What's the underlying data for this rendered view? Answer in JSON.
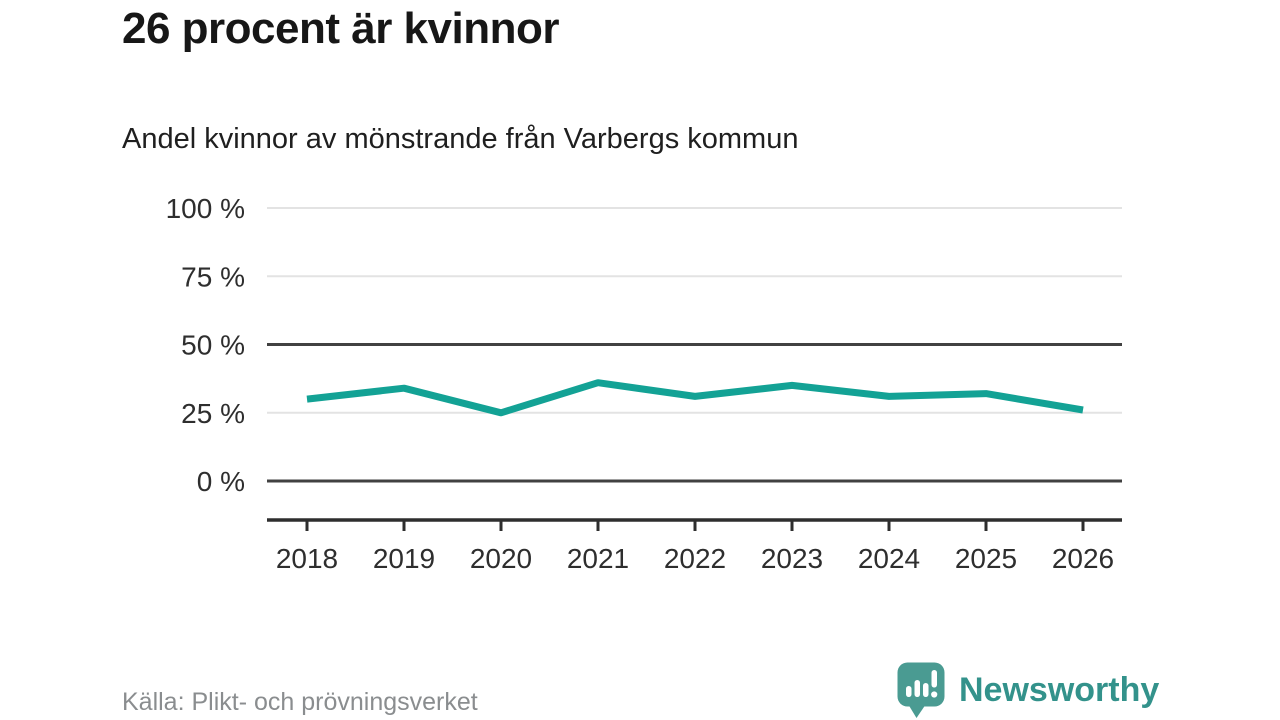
{
  "header": {
    "title": "26 procent är kvinnor",
    "subtitle": "Andel kvinnor av mönstrande från Varbergs kommun"
  },
  "footer": {
    "source_label": "Källa: Plikt- och prövningsverket",
    "logo_text": "Newsworthy"
  },
  "brand": {
    "icon_color": "#4a9b92",
    "text_color": "#33928b"
  },
  "chart_data": {
    "type": "line",
    "title": "26 procent är kvinnor",
    "subtitle": "Andel kvinnor av mönstrande från Varbergs kommun",
    "categories": [
      "2018",
      "2019",
      "2020",
      "2021",
      "2022",
      "2023",
      "2024",
      "2025",
      "2026"
    ],
    "series": [
      {
        "name": "Andel kvinnor av mönstrande",
        "values": [
          30,
          34,
          25,
          36,
          31,
          35,
          31,
          32,
          26
        ]
      }
    ],
    "unit": "%",
    "ylim": [
      0,
      100
    ],
    "yticks": [
      {
        "value": 0,
        "label": "0 %",
        "emphasized": true
      },
      {
        "value": 25,
        "label": "25 %",
        "emphasized": false
      },
      {
        "value": 50,
        "label": "50 %",
        "emphasized": true
      },
      {
        "value": 75,
        "label": "75 %",
        "emphasized": false
      },
      {
        "value": 100,
        "label": "100 %",
        "emphasized": false
      }
    ],
    "grid": true,
    "legend_position": "none",
    "line_color": "#13a295"
  }
}
